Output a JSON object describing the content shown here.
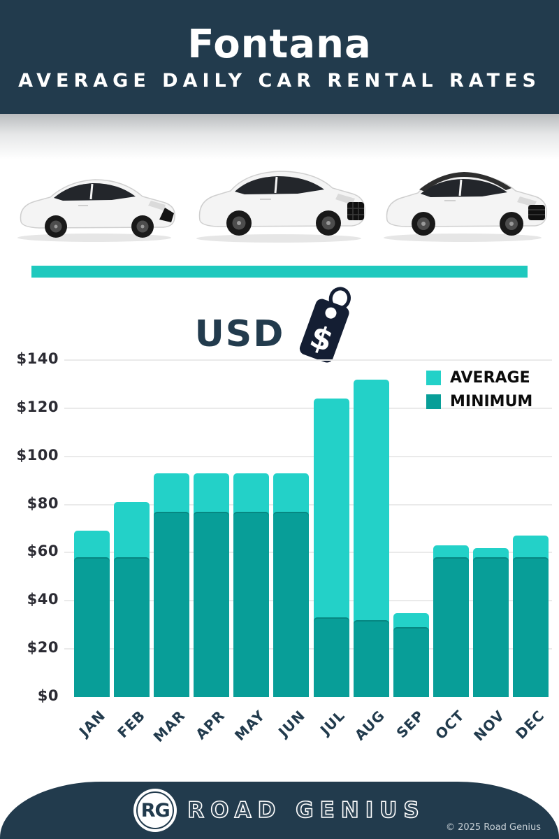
{
  "header": {
    "title": "Fontana",
    "subtitle": "AVERAGE DAILY CAR RENTAL RATES"
  },
  "currency": {
    "code": "USD",
    "symbol": "$"
  },
  "cars": {
    "labels": [
      "white hatchback car",
      "white SUV car",
      "white SUV with dark roof"
    ]
  },
  "chart_data": {
    "type": "bar",
    "title": "Average daily car rental rates in Fontana (USD)",
    "categories": [
      "JAN",
      "FEB",
      "MAR",
      "APR",
      "MAY",
      "JUN",
      "JUL",
      "AUG",
      "SEP",
      "OCT",
      "NOV",
      "DEC"
    ],
    "series": [
      {
        "name": "AVERAGE",
        "color": "#23d1c8",
        "values": [
          69,
          81,
          93,
          93,
          93,
          93,
          124,
          132,
          35,
          63,
          62,
          67
        ]
      },
      {
        "name": "MINIMUM",
        "color": "#089e98",
        "values": [
          58,
          58,
          77,
          77,
          77,
          77,
          33,
          32,
          29,
          58,
          58,
          58
        ]
      }
    ],
    "xlabel": "",
    "ylabel": "",
    "y_ticks": [
      "$0",
      "$20",
      "$40",
      "$60",
      "$80",
      "$100",
      "$120",
      "$140"
    ],
    "ylim": [
      0,
      140
    ],
    "grid": true,
    "legend_position": "top-right",
    "bar_style": "overlaid"
  },
  "footer": {
    "logo_initials": "RG",
    "brand": "ROAD GENIUS",
    "copyright": "© 2025 Road Genius"
  },
  "colors": {
    "navy": "#223b4d",
    "divider_teal": "#1fc9be",
    "average_teal": "#23d1c8",
    "minimum_teal": "#089e98",
    "tag_navy": "#141e33"
  }
}
